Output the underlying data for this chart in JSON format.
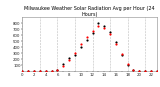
{
  "title": "Milwaukee Weather Solar Radiation Avg per Hour (24 Hours)",
  "background_color": "#ffffff",
  "grid_color": "#bbbbbb",
  "xlim": [
    0,
    23
  ],
  "ylim": [
    0,
    900
  ],
  "ytick_values": [
    100,
    200,
    300,
    400,
    500,
    600,
    700,
    800
  ],
  "hours": [
    0,
    1,
    2,
    3,
    4,
    5,
    6,
    7,
    8,
    9,
    10,
    11,
    12,
    13,
    14,
    15,
    16,
    17,
    18,
    19,
    20,
    21,
    22,
    23
  ],
  "values_red": [
    0,
    0,
    0,
    0,
    0,
    2,
    18,
    90,
    195,
    310,
    450,
    570,
    680,
    760,
    730,
    620,
    460,
    295,
    130,
    20,
    2,
    0,
    0,
    0
  ],
  "values_black": [
    0,
    0,
    0,
    0,
    0,
    5,
    25,
    115,
    230,
    270,
    410,
    530,
    640,
    810,
    760,
    650,
    490,
    265,
    105,
    15,
    0,
    0,
    0,
    0
  ],
  "dot_size_red": 2.5,
  "dot_size_black": 2.5,
  "color_red": "#ff0000",
  "color_black": "#000000",
  "vgrid_x": [
    0,
    3,
    6,
    9,
    12,
    15,
    18,
    21
  ],
  "title_fontsize": 3.5,
  "tick_fontsize": 2.8
}
